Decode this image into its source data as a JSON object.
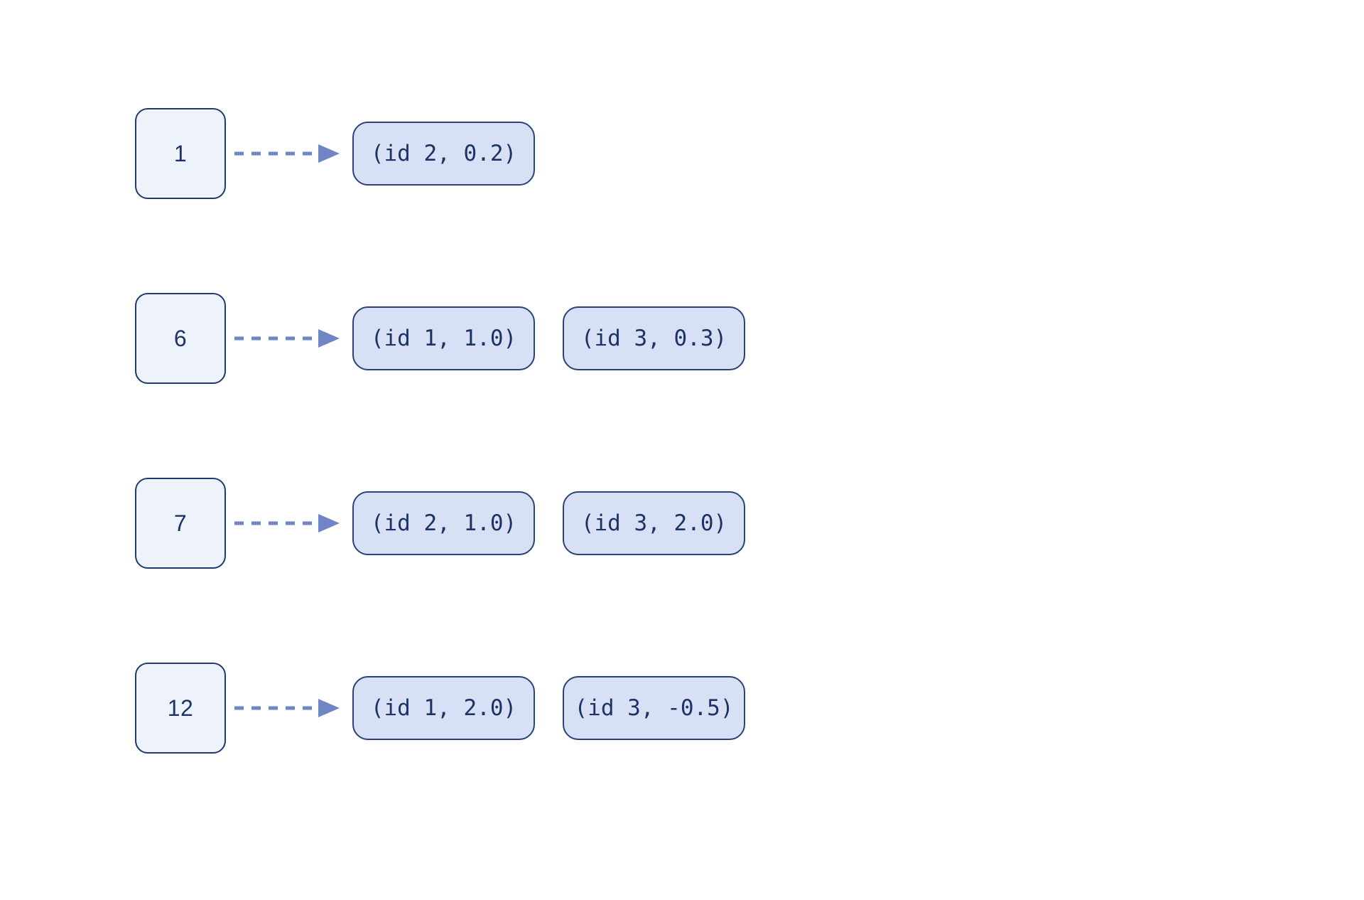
{
  "diagram": {
    "kind": "inverted-index-postings-list",
    "rows": [
      {
        "key": "1",
        "postings": [
          "(id 2, 0.2)"
        ]
      },
      {
        "key": "6",
        "postings": [
          "(id 1, 1.0)",
          "(id 3, 0.3)"
        ]
      },
      {
        "key": "7",
        "postings": [
          "(id 2, 1.0)",
          "(id 3, 2.0)"
        ]
      },
      {
        "key": "12",
        "postings": [
          "(id 1, 2.0)",
          "(id 3, -0.5)"
        ]
      }
    ]
  },
  "icons": {
    "arrow": "dashed-arrow-right-icon"
  },
  "colors": {
    "background": "#ffffff",
    "key_box_fill": "#eef2fb",
    "key_box_border": "#1f3a6d",
    "posting_box_fill": "#d7e0f5",
    "posting_box_border": "#2b4275",
    "text": "#1e3365",
    "arrow": "#6f85c4"
  }
}
